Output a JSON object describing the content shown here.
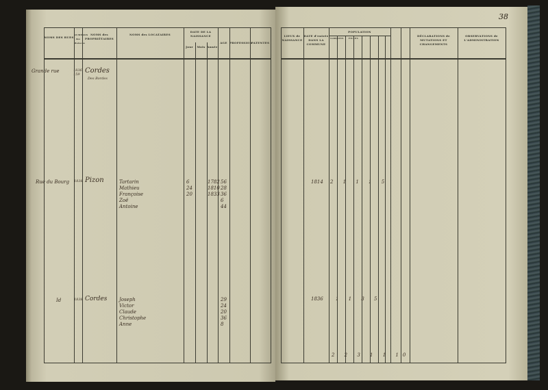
{
  "page_number": "38",
  "left_headers": {
    "rues": "NOMS DES RUES",
    "numeros": "NUMÉROS des Maisons",
    "proprietaires": "NOMS des PROPRIÉTAIRES",
    "locataires": "NOMS des LOCATAIRES",
    "date": "DATE DE LA NAISSANCE",
    "jour": "Jour",
    "mois": "Mois",
    "annee": "Année",
    "age": "AGE",
    "profession": "PROFESSION",
    "patentes": "PATENTES"
  },
  "right_headers": {
    "lieux": "LIEUX de NAISSANCE",
    "entree": "DATE d'entrée DANS LA COMMUNE",
    "population": "POPULATION",
    "garcons": "GARÇONS",
    "filles": "FILLES",
    "declarations": "DÉCLARATIONS de MUTATIONS ET CHANGEMENTS",
    "observations": "OBSERVATIONS de L'ADMINISTRATION"
  },
  "entries": [
    {
      "street": "Grande rue",
      "number": "1836 159",
      "owner": "Cordes",
      "owner2": "Des Bordes"
    },
    {
      "street": "Rue du Bourg",
      "number": "1838",
      "owner": "Pizon",
      "tenants": [
        "Tartarin",
        "Mathieu",
        "Françoise",
        "Zoë",
        "Antoine"
      ],
      "days": [
        "6",
        "24",
        "20"
      ],
      "years": [
        "1782",
        "1810",
        "1833"
      ],
      "ages": [
        "56",
        "28",
        "36",
        "6",
        "44"
      ],
      "year_entry": "1814",
      "count": "2 1 1 1 5"
    },
    {
      "street": "Id",
      "number": "1838",
      "owner": "Cordes",
      "tenants": [
        "Joseph",
        "Victor",
        "Claude",
        "Christophe",
        "Anne"
      ],
      "ages": [
        "29",
        "24",
        "20",
        "36",
        "8"
      ],
      "year_entry": "1836",
      "count": "1 1 3 5"
    },
    {
      "totals": "2 2 3 1 1 10"
    }
  ]
}
